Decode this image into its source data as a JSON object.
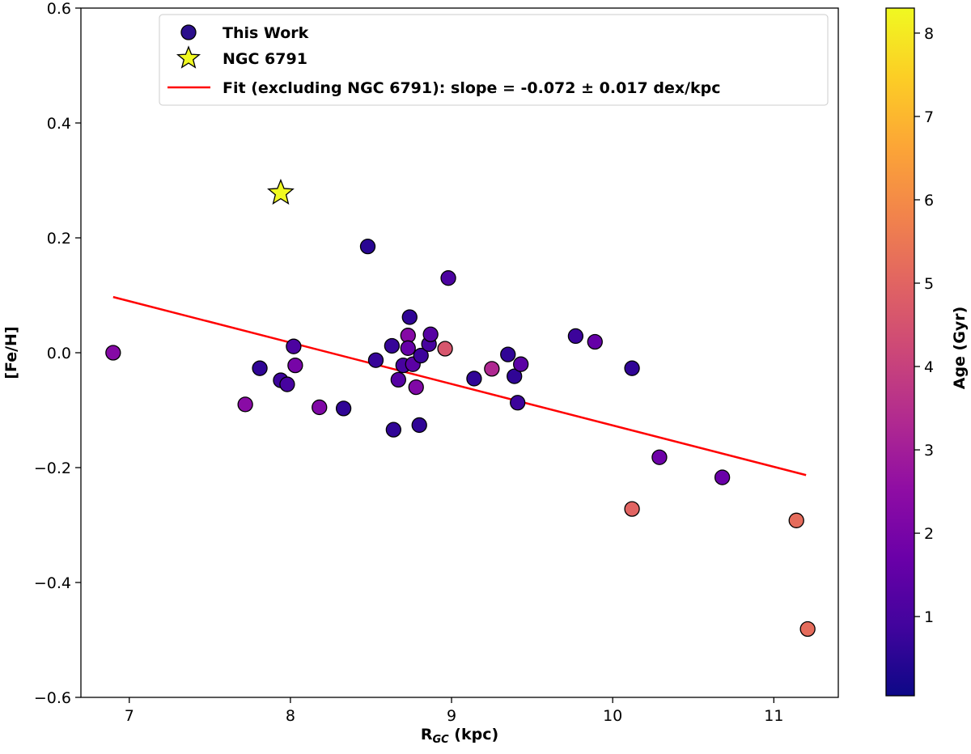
{
  "chart_data": {
    "type": "scatter",
    "xlabel": "R",
    "xlabel_sub": "GC",
    "xlabel_unit": "(kpc)",
    "ylabel": "[Fe/H]",
    "xlim": [
      6.7,
      11.4
    ],
    "ylim": [
      -0.6,
      0.6
    ],
    "x_ticks": [
      7,
      8,
      9,
      10,
      11
    ],
    "y_ticks": [
      -0.6,
      -0.4,
      -0.2,
      0.0,
      0.2,
      0.4,
      0.6
    ],
    "x_tick_labels": [
      "7",
      "8",
      "9",
      "10",
      "11"
    ],
    "y_tick_labels": [
      "−0.6",
      "−0.4",
      "−0.2",
      "0.0",
      "0.2",
      "0.4",
      "0.6"
    ],
    "colorbar": {
      "label": "Age (Gyr)",
      "colormap": "plasma",
      "range": [
        0.05,
        8.3
      ],
      "ticks": [
        1,
        2,
        3,
        4,
        5,
        6,
        7,
        8
      ],
      "tick_labels": [
        "1",
        "2",
        "3",
        "4",
        "5",
        "6",
        "7",
        "8"
      ]
    },
    "legend": {
      "placement": "upper-center",
      "entries": [
        {
          "label": "This Work",
          "marker": "circle",
          "color": "#2b0f8c"
        },
        {
          "label": "NGC 6791",
          "marker": "star",
          "color": "#f0f921"
        },
        {
          "label": "Fit (excluding NGC 6791): slope = -0.072 ± 0.017 dex/kpc",
          "marker": "line",
          "color": "#ff0000"
        }
      ]
    },
    "series": [
      {
        "name": "This Work",
        "points": [
          {
            "x": 6.9,
            "y": 0.0,
            "age": 2.3
          },
          {
            "x": 7.72,
            "y": -0.09,
            "age": 2.4
          },
          {
            "x": 7.81,
            "y": -0.027,
            "age": 0.6
          },
          {
            "x": 7.94,
            "y": -0.048,
            "age": 0.8
          },
          {
            "x": 7.98,
            "y": -0.055,
            "age": 1.0
          },
          {
            "x": 8.02,
            "y": 0.011,
            "age": 1.1
          },
          {
            "x": 8.03,
            "y": -0.022,
            "age": 2.0
          },
          {
            "x": 8.18,
            "y": -0.095,
            "age": 2.2
          },
          {
            "x": 8.33,
            "y": -0.097,
            "age": 0.6
          },
          {
            "x": 8.48,
            "y": 0.185,
            "age": 0.5
          },
          {
            "x": 8.53,
            "y": -0.013,
            "age": 0.7
          },
          {
            "x": 8.63,
            "y": 0.012,
            "age": 0.7
          },
          {
            "x": 8.64,
            "y": -0.134,
            "age": 0.6
          },
          {
            "x": 8.67,
            "y": -0.047,
            "age": 1.3
          },
          {
            "x": 8.7,
            "y": -0.022,
            "age": 1.0
          },
          {
            "x": 8.73,
            "y": 0.03,
            "age": 2.3
          },
          {
            "x": 8.73,
            "y": 0.008,
            "age": 1.6
          },
          {
            "x": 8.74,
            "y": 0.062,
            "age": 0.6
          },
          {
            "x": 8.76,
            "y": -0.02,
            "age": 1.4
          },
          {
            "x": 8.78,
            "y": -0.06,
            "age": 2.2
          },
          {
            "x": 8.8,
            "y": -0.126,
            "age": 0.6
          },
          {
            "x": 8.81,
            "y": -0.005,
            "age": 0.8
          },
          {
            "x": 8.86,
            "y": 0.015,
            "age": 1.0
          },
          {
            "x": 8.87,
            "y": 0.032,
            "age": 1.3
          },
          {
            "x": 8.96,
            "y": 0.007,
            "age": 4.6
          },
          {
            "x": 8.98,
            "y": 0.13,
            "age": 1.1
          },
          {
            "x": 9.14,
            "y": -0.045,
            "age": 0.6
          },
          {
            "x": 9.25,
            "y": -0.028,
            "age": 3.3
          },
          {
            "x": 9.35,
            "y": -0.003,
            "age": 0.6
          },
          {
            "x": 9.39,
            "y": -0.041,
            "age": 0.6
          },
          {
            "x": 9.41,
            "y": -0.087,
            "age": 0.8
          },
          {
            "x": 9.43,
            "y": -0.02,
            "age": 1.4
          },
          {
            "x": 9.77,
            "y": 0.029,
            "age": 0.8
          },
          {
            "x": 9.89,
            "y": 0.019,
            "age": 1.6
          },
          {
            "x": 10.12,
            "y": -0.027,
            "age": 0.6
          },
          {
            "x": 10.12,
            "y": -0.272,
            "age": 5.0
          },
          {
            "x": 10.29,
            "y": -0.182,
            "age": 1.8
          },
          {
            "x": 10.68,
            "y": -0.217,
            "age": 1.7
          },
          {
            "x": 11.14,
            "y": -0.292,
            "age": 5.2
          },
          {
            "x": 11.21,
            "y": -0.481,
            "age": 5.2
          }
        ]
      },
      {
        "name": "NGC 6791",
        "points": [
          {
            "x": 7.94,
            "y": 0.278,
            "age": 8.3
          }
        ]
      }
    ],
    "fit_line": {
      "name": "Fit (excluding NGC 6791)",
      "x": [
        6.9,
        11.2
      ],
      "y": [
        0.097,
        -0.213
      ]
    }
  }
}
